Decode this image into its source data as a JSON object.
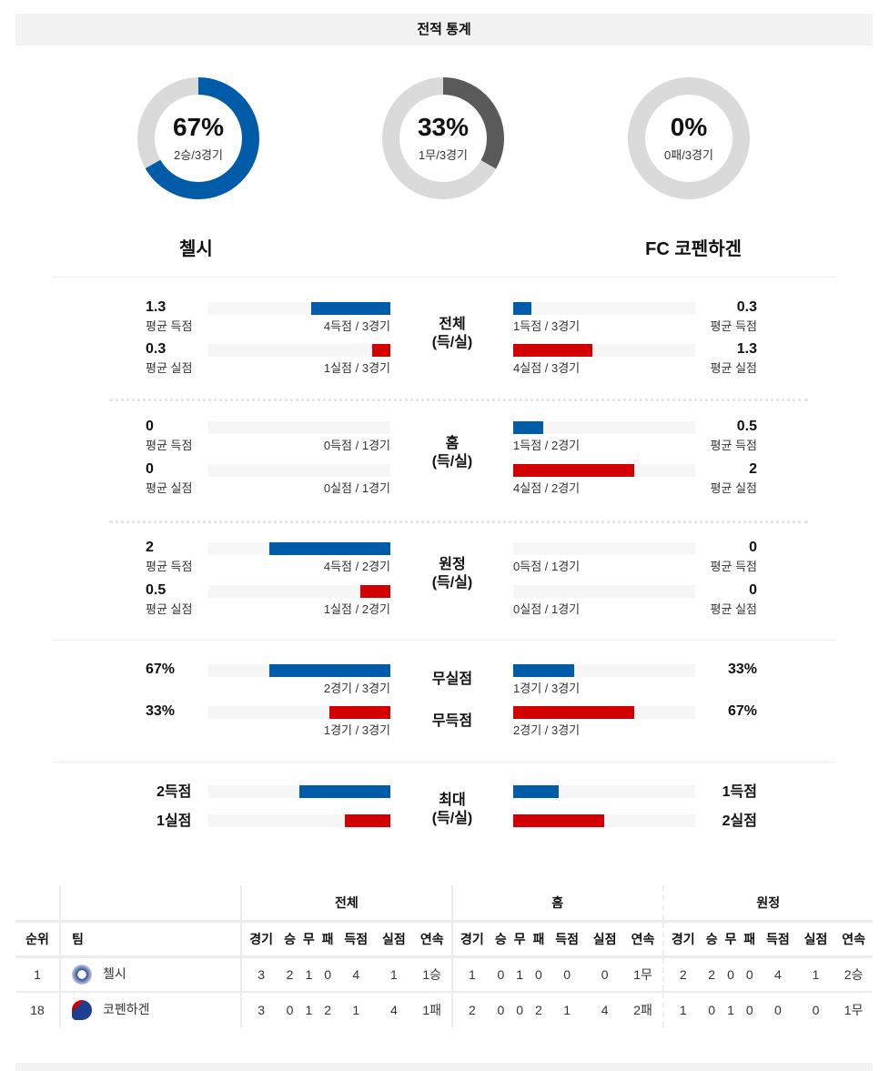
{
  "header": {
    "title": "전적 통계"
  },
  "donuts": [
    {
      "pct": "67%",
      "sub": "2승/3경기",
      "fraction": 0.667,
      "color": "#005ca9"
    },
    {
      "pct": "33%",
      "sub": "1무/3경기",
      "fraction": 0.333,
      "color": "#5a5a5a"
    },
    {
      "pct": "0%",
      "sub": "0패/3경기",
      "fraction": 0,
      "color": "#005ca9"
    }
  ],
  "teams": {
    "home": "첼시",
    "away": "FC 코펜하겐"
  },
  "colors": {
    "scored": "#005ca9",
    "conceded": "#d20000",
    "track": "#dadada"
  },
  "sections": [
    {
      "label": "전체\n(득/실)",
      "rows": [
        {
          "type": "scored",
          "left": {
            "value": "1.3",
            "label": "평균 득점",
            "caption": "4득점 / 3경기",
            "fraction": 0.433
          },
          "right": {
            "value": "0.3",
            "label": "평균 득점",
            "caption": "1득점 / 3경기",
            "fraction": 0.1
          }
        },
        {
          "type": "conceded",
          "left": {
            "value": "0.3",
            "label": "평균 실점",
            "caption": "1실점 / 3경기",
            "fraction": 0.1
          },
          "right": {
            "value": "1.3",
            "label": "평균 실점",
            "caption": "4실점 / 3경기",
            "fraction": 0.433
          }
        }
      ]
    },
    {
      "label": "홈\n(득/실)",
      "rows": [
        {
          "type": "scored",
          "left": {
            "value": "0",
            "label": "평균 득점",
            "caption": "0득점 / 1경기",
            "fraction": 0
          },
          "right": {
            "value": "0.5",
            "label": "평균 득점",
            "caption": "1득점 / 2경기",
            "fraction": 0.167
          }
        },
        {
          "type": "conceded",
          "left": {
            "value": "0",
            "label": "평균 실점",
            "caption": "0실점 / 1경기",
            "fraction": 0
          },
          "right": {
            "value": "2",
            "label": "평균 실점",
            "caption": "4실점 / 2경기",
            "fraction": 0.667
          }
        }
      ]
    },
    {
      "label": "원정\n(득/실)",
      "rows": [
        {
          "type": "scored",
          "left": {
            "value": "2",
            "label": "평균 득점",
            "caption": "4득점 / 2경기",
            "fraction": 0.667
          },
          "right": {
            "value": "0",
            "label": "평균 득점",
            "caption": "0득점 / 1경기",
            "fraction": 0
          }
        },
        {
          "type": "conceded",
          "left": {
            "value": "0.5",
            "label": "평균 실점",
            "caption": "1실점 / 2경기",
            "fraction": 0.167
          },
          "right": {
            "value": "0",
            "label": "평균 실점",
            "caption": "0실점 / 1경기",
            "fraction": 0
          }
        }
      ]
    },
    {
      "rows": [
        {
          "type": "scored",
          "center": "무실점",
          "left": {
            "value": "67%",
            "caption": "2경기 / 3경기",
            "fraction": 0.667
          },
          "right": {
            "value": "33%",
            "caption": "1경기 / 3경기",
            "fraction": 0.333
          }
        },
        {
          "type": "conceded",
          "center": "무득점",
          "left": {
            "value": "33%",
            "caption": "1경기 / 3경기",
            "fraction": 0.333
          },
          "right": {
            "value": "67%",
            "caption": "2경기 / 3경기",
            "fraction": 0.667
          }
        }
      ]
    },
    {
      "label": "최대\n(득/실)",
      "rows": [
        {
          "type": "scored",
          "left": {
            "value": "2득점",
            "fraction": 0.5
          },
          "right": {
            "value": "1득점",
            "fraction": 0.25
          }
        },
        {
          "type": "conceded",
          "left": {
            "value": "1실점",
            "fraction": 0.25
          },
          "right": {
            "value": "2실점",
            "fraction": 0.5
          }
        }
      ]
    }
  ],
  "table": {
    "groups": [
      "전체",
      "홈",
      "원정"
    ],
    "headers": {
      "rank": "순위",
      "team": "팀",
      "cols": [
        "경기",
        "승",
        "무",
        "패",
        "득점",
        "실점",
        "연속"
      ]
    },
    "rows": [
      {
        "rank": "1",
        "team": "첼시",
        "overall": [
          "3",
          "2",
          "1",
          "0",
          "4",
          "1",
          "1승"
        ],
        "home": [
          "1",
          "0",
          "1",
          "0",
          "0",
          "0",
          "1무"
        ],
        "away": [
          "2",
          "2",
          "0",
          "0",
          "4",
          "1",
          "2승"
        ]
      },
      {
        "rank": "18",
        "team": "코펜하겐",
        "overall": [
          "3",
          "0",
          "1",
          "2",
          "1",
          "4",
          "1패"
        ],
        "home": [
          "2",
          "0",
          "0",
          "2",
          "1",
          "4",
          "2패"
        ],
        "away": [
          "1",
          "0",
          "1",
          "0",
          "0",
          "0",
          "1무"
        ]
      }
    ]
  }
}
